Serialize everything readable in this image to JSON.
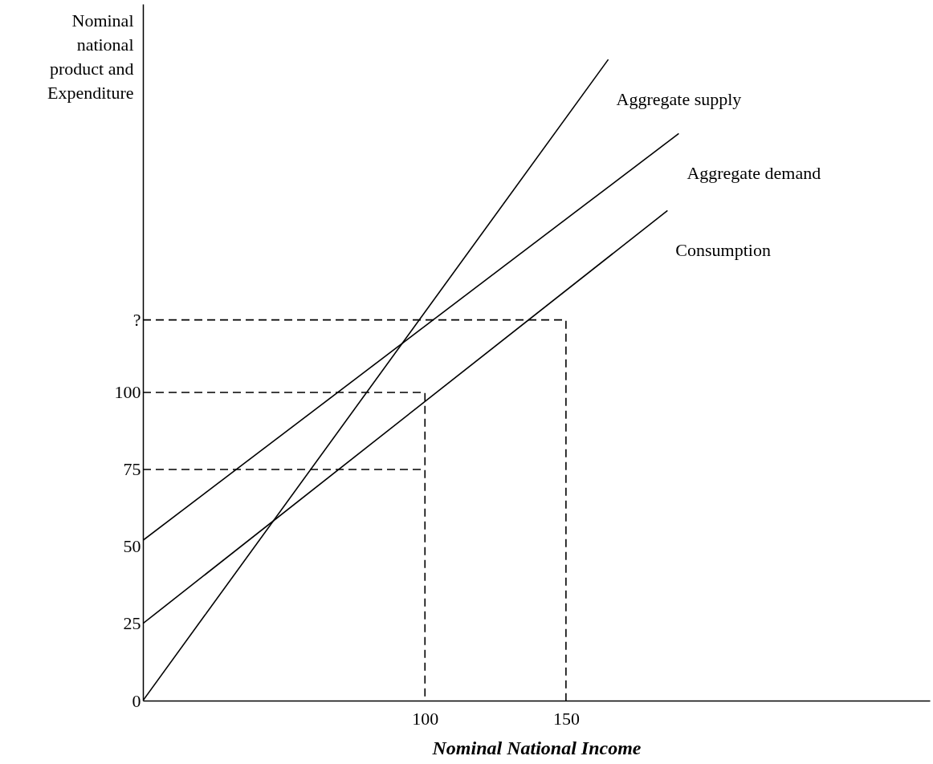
{
  "chart_data": {
    "type": "line",
    "xlabel": "Nominal National Income",
    "ylabel": "Nominal national product and Expenditure",
    "xlim": [
      0,
      279
    ],
    "ylim": [
      0,
      226
    ],
    "xticks": [
      100,
      150
    ],
    "yticks": [
      0,
      25,
      50,
      75,
      100,
      {
        "value": 123.5,
        "label": "?"
      }
    ],
    "series": [
      {
        "name": "Aggregate supply",
        "color": "#000000",
        "line_style": "solid",
        "x": [
          0,
          165
        ],
        "values": [
          0,
          208
        ]
      },
      {
        "name": "Aggregate demand",
        "color": "#000000",
        "line_style": "solid",
        "x": [
          0,
          190
        ],
        "values": [
          52,
          184
        ]
      },
      {
        "name": "Consumption",
        "color": "#000000",
        "line_style": "solid",
        "x": [
          0,
          186
        ],
        "values": [
          25,
          159
        ]
      },
      {
        "color": "#000000",
        "line_style": "dashed",
        "x": [
          0,
          150,
          150
        ],
        "values": [
          123.5,
          123.5,
          0
        ]
      },
      {
        "color": "#000000",
        "line_style": "dashed",
        "x": [
          0,
          100,
          100
        ],
        "values": [
          100,
          100,
          0
        ]
      },
      {
        "color": "#000000",
        "line_style": "dashed",
        "x": [
          0,
          100
        ],
        "values": [
          75,
          75
        ]
      }
    ]
  }
}
